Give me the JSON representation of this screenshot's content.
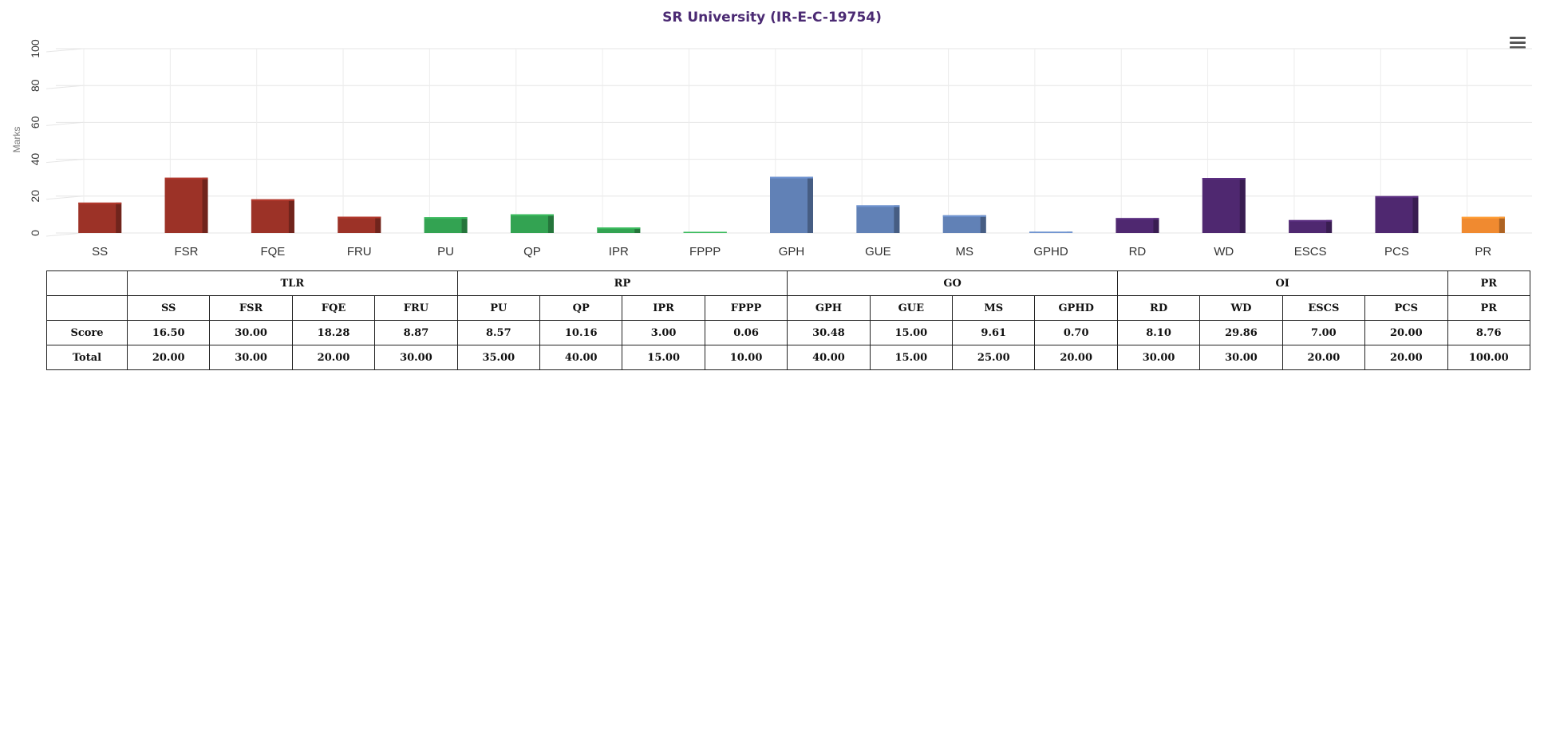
{
  "chart_data": {
    "type": "bar",
    "title": "SR University (IR-E-C-19754)",
    "ylabel": "Marks",
    "ylim": [
      0,
      100
    ],
    "yticks": [
      0,
      20,
      40,
      60,
      80,
      100
    ],
    "grid": true,
    "categories": [
      "SS",
      "FSR",
      "FQE",
      "FRU",
      "PU",
      "QP",
      "IPR",
      "FPPP",
      "GPH",
      "GUE",
      "MS",
      "GPHD",
      "RD",
      "WD",
      "ESCS",
      "PCS",
      "PR"
    ],
    "values": [
      16.5,
      30.0,
      18.28,
      8.87,
      8.57,
      10.16,
      3.0,
      0.06,
      30.48,
      15.0,
      9.61,
      0.7,
      8.1,
      29.86,
      7.0,
      20.0,
      8.76
    ],
    "groups": [
      "TLR",
      "TLR",
      "TLR",
      "TLR",
      "RP",
      "RP",
      "RP",
      "RP",
      "GO",
      "GO",
      "GO",
      "GO",
      "OI",
      "OI",
      "OI",
      "OI",
      "PR"
    ]
  },
  "colors": {
    "TLR": "#9c3227",
    "RP": "#33a352",
    "GO": "#6181b6",
    "OI": "#4f2870",
    "PR": "#f08a30",
    "title": "#4b2a73"
  },
  "table": {
    "groups": [
      {
        "name": "TLR",
        "span": 4
      },
      {
        "name": "RP",
        "span": 4
      },
      {
        "name": "GO",
        "span": 4
      },
      {
        "name": "OI",
        "span": 4
      },
      {
        "name": "PR",
        "span": 1
      }
    ],
    "headers": [
      "SS",
      "FSR",
      "FQE",
      "FRU",
      "PU",
      "QP",
      "IPR",
      "FPPP",
      "GPH",
      "GUE",
      "MS",
      "GPHD",
      "RD",
      "WD",
      "ESCS",
      "PCS",
      "PR"
    ],
    "score_label": "Score",
    "scores": [
      "16.50",
      "30.00",
      "18.28",
      "8.87",
      "8.57",
      "10.16",
      "3.00",
      "0.06",
      "30.48",
      "15.00",
      "9.61",
      "0.70",
      "8.10",
      "29.86",
      "7.00",
      "20.00",
      "8.76"
    ],
    "total_label": "Total",
    "totals": [
      "20.00",
      "30.00",
      "20.00",
      "30.00",
      "35.00",
      "40.00",
      "15.00",
      "10.00",
      "40.00",
      "15.00",
      "25.00",
      "20.00",
      "30.00",
      "30.00",
      "20.00",
      "20.00",
      "100.00"
    ]
  },
  "menu": {
    "icon": "hamburger-menu-icon"
  }
}
